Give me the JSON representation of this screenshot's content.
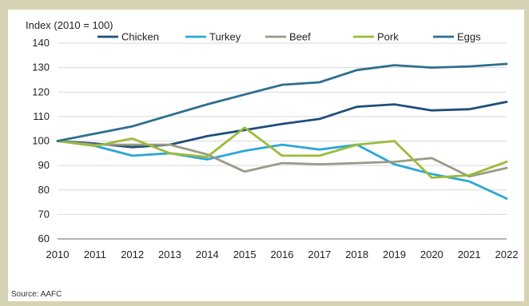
{
  "chart_data": {
    "type": "line",
    "ylabel": "Index (2010 = 100)",
    "source": "Source: AAFC",
    "x": [
      "2010",
      "2011",
      "2012",
      "2013",
      "2014",
      "2015",
      "2016",
      "2017",
      "2018",
      "2019",
      "2020",
      "2021",
      "2022"
    ],
    "ylim": [
      60,
      140
    ],
    "yticks": [
      60,
      70,
      80,
      90,
      100,
      110,
      120,
      130,
      140
    ],
    "grid": true,
    "legend_position": "top",
    "series": [
      {
        "name": "Chicken",
        "color": "#1f4e79",
        "values": [
          100,
          99,
          97.5,
          98.5,
          102,
          104.5,
          107,
          109,
          114,
          115,
          112.5,
          113,
          116
        ]
      },
      {
        "name": "Turkey",
        "color": "#2aa7d6",
        "values": [
          100,
          98,
          94,
          95,
          92.5,
          96,
          98.5,
          96.5,
          98.5,
          90.5,
          86.5,
          83.5,
          76.5
        ]
      },
      {
        "name": "Beef",
        "color": "#9a9a86",
        "values": [
          100,
          98.5,
          98.5,
          98.5,
          94.5,
          87.5,
          91,
          90.5,
          91,
          91.5,
          93,
          85.5,
          89
        ]
      },
      {
        "name": "Pork",
        "color": "#9bbb3b",
        "values": [
          100,
          98,
          101,
          95,
          93.5,
          105.5,
          94,
          94,
          98.5,
          100,
          85,
          86,
          91.5
        ]
      },
      {
        "name": "Eggs",
        "color": "#2d6f8e",
        "values": [
          100,
          103,
          106,
          110.5,
          115,
          119,
          123,
          124,
          129,
          131,
          130,
          130.5,
          131.5
        ]
      }
    ]
  }
}
